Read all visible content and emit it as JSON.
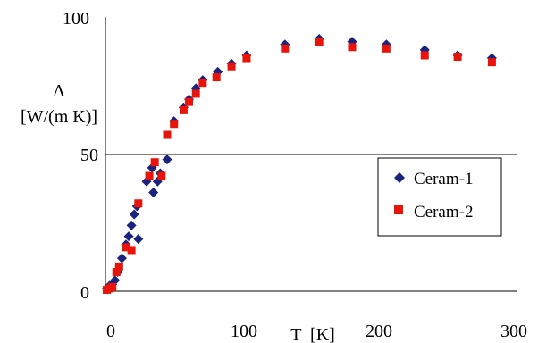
{
  "chart_data": {
    "type": "scatter",
    "xlabel": "T  [K]",
    "ylabel_line1": "Λ",
    "ylabel_line2": "[W/(m K)]",
    "xlim": [
      0,
      300
    ],
    "ylim": [
      0,
      100
    ],
    "xticks": [
      "0",
      "100",
      "200",
      "300"
    ],
    "yticks": [
      "0",
      "50",
      "100"
    ],
    "grid": "horizontal line at 50",
    "legend_position": "right",
    "series": [
      {
        "name": "Ceram-1",
        "color": "#1a237e",
        "marker": "diamond",
        "points": [
          [
            1,
            1
          ],
          [
            3,
            2
          ],
          [
            5,
            2.5
          ],
          [
            7,
            4
          ],
          [
            9,
            7
          ],
          [
            12,
            12
          ],
          [
            15,
            17
          ],
          [
            17,
            20
          ],
          [
            19,
            24
          ],
          [
            21,
            28
          ],
          [
            23,
            31
          ],
          [
            24,
            19
          ],
          [
            30,
            40
          ],
          [
            34,
            45
          ],
          [
            35,
            36
          ],
          [
            38,
            40
          ],
          [
            40,
            43
          ],
          [
            45,
            48
          ],
          [
            50,
            62
          ],
          [
            57,
            67
          ],
          [
            61,
            70
          ],
          [
            66,
            74
          ],
          [
            71,
            77
          ],
          [
            82,
            80
          ],
          [
            92,
            83
          ],
          [
            103,
            86
          ],
          [
            131,
            90
          ],
          [
            156,
            92
          ],
          [
            180,
            91
          ],
          [
            205,
            90
          ],
          [
            233,
            88
          ],
          [
            257,
            86
          ],
          [
            282,
            85
          ]
        ]
      },
      {
        "name": "Ceram-2",
        "color": "#e8140a",
        "marker": "square",
        "points": [
          [
            1,
            0.5
          ],
          [
            3,
            1
          ],
          [
            5,
            1.5
          ],
          [
            8,
            7
          ],
          [
            10,
            9
          ],
          [
            15,
            16
          ],
          [
            19,
            15
          ],
          [
            24,
            32
          ],
          [
            32,
            42
          ],
          [
            36,
            47
          ],
          [
            41,
            42
          ],
          [
            45,
            57
          ],
          [
            50,
            61
          ],
          [
            57,
            66
          ],
          [
            61,
            69
          ],
          [
            66,
            72
          ],
          [
            71,
            76
          ],
          [
            81,
            78
          ],
          [
            92,
            82
          ],
          [
            103,
            85
          ],
          [
            131,
            88.5
          ],
          [
            156,
            91
          ],
          [
            180,
            89
          ],
          [
            205,
            88.5
          ],
          [
            233,
            86
          ],
          [
            257,
            85.5
          ],
          [
            282,
            83.5
          ]
        ]
      }
    ]
  }
}
